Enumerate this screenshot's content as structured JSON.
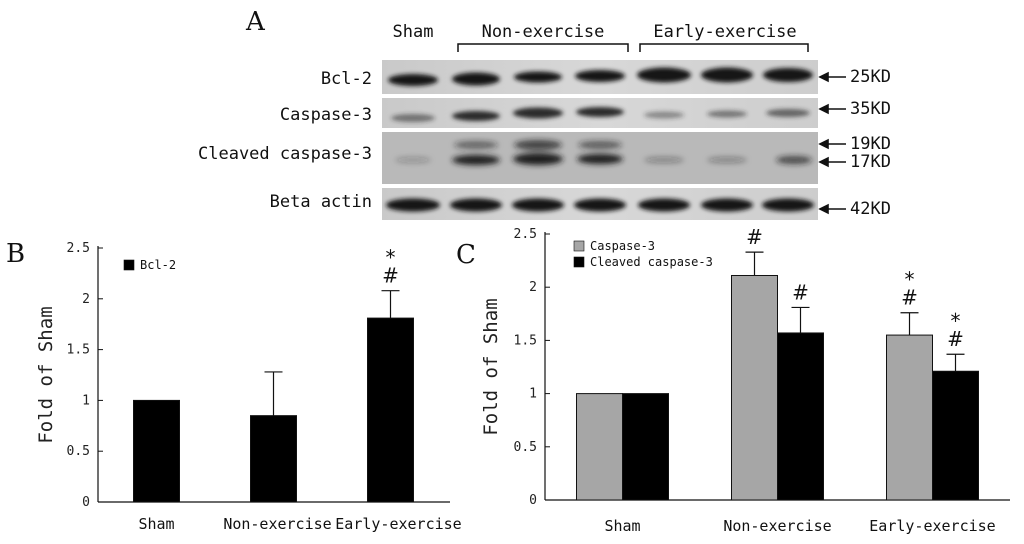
{
  "panels": {
    "a": "A",
    "b": "B",
    "c": "C"
  },
  "blot": {
    "groups": [
      "Sham",
      "Non-exercise",
      "Early-exercise"
    ],
    "rows": [
      {
        "label": "Bcl-2",
        "markers": [
          "25KD"
        ]
      },
      {
        "label": "Caspase-3",
        "markers": [
          "35KD"
        ]
      },
      {
        "label": "Cleaved caspase-3",
        "markers": [
          "19KD",
          "17KD"
        ]
      },
      {
        "label": "Beta actin",
        "markers": [
          "42KD"
        ]
      }
    ]
  },
  "chart_data": [
    {
      "type": "bar",
      "panel": "B",
      "categories": [
        "Sham",
        "Non-exercise",
        "Early-exercise"
      ],
      "series": [
        {
          "name": "Bcl-2",
          "color": "#000000",
          "values": [
            1.0,
            0.85,
            1.81
          ],
          "errors": [
            0,
            0.43,
            0.27
          ]
        }
      ],
      "ylabel": "Fold of Sham",
      "ylim": [
        0,
        2.5
      ],
      "yticks": [
        0,
        0.5,
        1,
        1.5,
        2,
        2.5
      ],
      "ytick_labels": [
        "0",
        "0.5",
        "1",
        "1.5",
        "2",
        "2.5"
      ],
      "annotations": [
        {
          "category": "Early-exercise",
          "series": "Bcl-2",
          "marks": [
            "*",
            "#"
          ]
        }
      ]
    },
    {
      "type": "bar",
      "panel": "C",
      "categories": [
        "Sham",
        "Non-exercise",
        "Early-exercise"
      ],
      "series": [
        {
          "name": "Caspase-3",
          "color": "#a6a6a6",
          "values": [
            1.0,
            2.11,
            1.55
          ],
          "errors": [
            0,
            0.22,
            0.21
          ]
        },
        {
          "name": "Cleaved caspase-3",
          "color": "#000000",
          "values": [
            1.0,
            1.57,
            1.21
          ],
          "errors": [
            0,
            0.24,
            0.16
          ]
        }
      ],
      "ylabel": "Fold of Sham",
      "ylim": [
        0,
        2.5
      ],
      "yticks": [
        0,
        0.5,
        1,
        1.5,
        2,
        2.5
      ],
      "ytick_labels": [
        "0",
        "0.5",
        "1",
        "1.5",
        "2",
        "2.5"
      ],
      "annotations": [
        {
          "category": "Non-exercise",
          "series": "Caspase-3",
          "marks": [
            "#"
          ]
        },
        {
          "category": "Non-exercise",
          "series": "Cleaved caspase-3",
          "marks": [
            "#"
          ]
        },
        {
          "category": "Early-exercise",
          "series": "Caspase-3",
          "marks": [
            "*",
            "#"
          ]
        },
        {
          "category": "Early-exercise",
          "series": "Cleaved caspase-3",
          "marks": [
            "*",
            "#"
          ]
        }
      ]
    }
  ]
}
